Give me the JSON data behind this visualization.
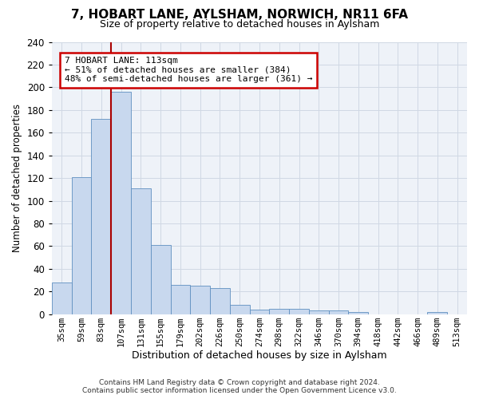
{
  "title": "7, HOBART LANE, AYLSHAM, NORWICH, NR11 6FA",
  "subtitle": "Size of property relative to detached houses in Aylsham",
  "xlabel": "Distribution of detached houses by size in Aylsham",
  "ylabel": "Number of detached properties",
  "footer_line1": "Contains HM Land Registry data © Crown copyright and database right 2024.",
  "footer_line2": "Contains public sector information licensed under the Open Government Licence v3.0.",
  "bar_color": "#c8d8ee",
  "bar_edge_color": "#6090c0",
  "grid_color": "#d0d8e4",
  "annotation_box_color": "#cc0000",
  "vline_color": "#aa0000",
  "background_color": "#ffffff",
  "plot_bg_color": "#eef2f8",
  "bins": [
    "35sqm",
    "59sqm",
    "83sqm",
    "107sqm",
    "131sqm",
    "155sqm",
    "179sqm",
    "202sqm",
    "226sqm",
    "250sqm",
    "274sqm",
    "298sqm",
    "322sqm",
    "346sqm",
    "370sqm",
    "394sqm",
    "418sqm",
    "442sqm",
    "466sqm",
    "489sqm",
    "513sqm"
  ],
  "values": [
    28,
    121,
    172,
    196,
    111,
    61,
    26,
    25,
    23,
    8,
    4,
    5,
    5,
    3,
    3,
    2,
    0,
    0,
    0,
    2,
    0
  ],
  "property_size": 113,
  "vline_bin_index": 3,
  "annotation_line1": "7 HOBART LANE: 113sqm",
  "annotation_line2": "← 51% of detached houses are smaller (384)",
  "annotation_line3": "48% of semi-detached houses are larger (361) →",
  "ylim": [
    0,
    240
  ],
  "yticks": [
    0,
    20,
    40,
    60,
    80,
    100,
    120,
    140,
    160,
    180,
    200,
    220,
    240
  ]
}
